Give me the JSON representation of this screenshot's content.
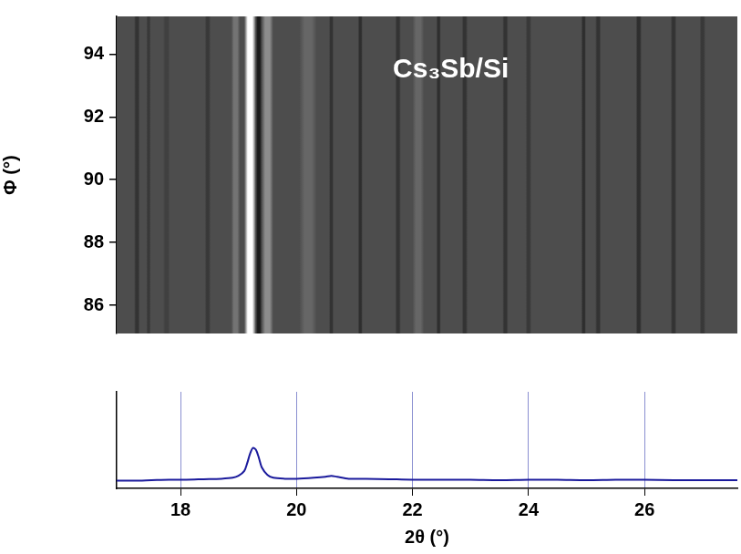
{
  "chart_data": [
    {
      "type": "image",
      "annotation": "Cs₃Sb/Si",
      "y_label": "Φ (°)",
      "xlim": [
        16.9,
        27.6
      ],
      "ylim": [
        85.1,
        95.2
      ],
      "yticks": [
        86,
        88,
        90,
        92,
        94
      ],
      "tick_labels": "y",
      "grid": false,
      "background_intensity": 0.3,
      "bands": {
        "x": [
          17.25,
          17.45,
          17.76,
          18.47,
          18.95,
          19.2,
          19.35,
          19.5,
          20.2,
          20.6,
          21.1,
          21.75,
          22.1,
          22.45,
          22.9,
          23.6,
          24.0,
          24.95,
          25.2,
          25.9,
          26.5,
          27.0
        ],
        "width": [
          0.1,
          0.08,
          0.12,
          0.1,
          0.15,
          0.2,
          0.1,
          0.2,
          0.3,
          0.08,
          0.08,
          0.1,
          0.2,
          0.08,
          0.1,
          0.1,
          0.1,
          0.08,
          0.1,
          0.1,
          0.1,
          0.1
        ],
        "intensity": [
          0.2,
          0.22,
          0.25,
          0.22,
          0.45,
          1.0,
          0.1,
          0.55,
          0.4,
          0.2,
          0.18,
          0.2,
          0.4,
          0.18,
          0.2,
          0.2,
          0.22,
          0.18,
          0.2,
          0.18,
          0.2,
          0.22
        ]
      }
    },
    {
      "type": "line",
      "x_label": "2θ (°)",
      "x": [
        16.9,
        17.2,
        17.5,
        17.8,
        18.1,
        18.4,
        18.7,
        18.9,
        19.0,
        19.1,
        19.15,
        19.2,
        19.25,
        19.3,
        19.35,
        19.4,
        19.5,
        19.6,
        19.8,
        20.0,
        20.3,
        20.5,
        20.6,
        20.7,
        20.9,
        21.2,
        21.6,
        22.0,
        22.5,
        23.0,
        23.5,
        24.0,
        24.5,
        25.0,
        25.5,
        26.0,
        26.5,
        27.0,
        27.6
      ],
      "values": [
        0.08,
        0.08,
        0.085,
        0.09,
        0.09,
        0.095,
        0.1,
        0.11,
        0.13,
        0.18,
        0.26,
        0.36,
        0.42,
        0.4,
        0.32,
        0.22,
        0.14,
        0.11,
        0.1,
        0.1,
        0.11,
        0.12,
        0.13,
        0.12,
        0.1,
        0.1,
        0.095,
        0.09,
        0.09,
        0.09,
        0.085,
        0.09,
        0.09,
        0.085,
        0.09,
        0.09,
        0.085,
        0.085,
        0.085
      ],
      "color": "#1a1a9c",
      "xlim": [
        16.9,
        27.6
      ],
      "ylim": [
        0,
        1
      ],
      "xticks": [
        18,
        20,
        22,
        24,
        26
      ],
      "yticks": [],
      "tick_labels": "x",
      "grid": true
    }
  ]
}
